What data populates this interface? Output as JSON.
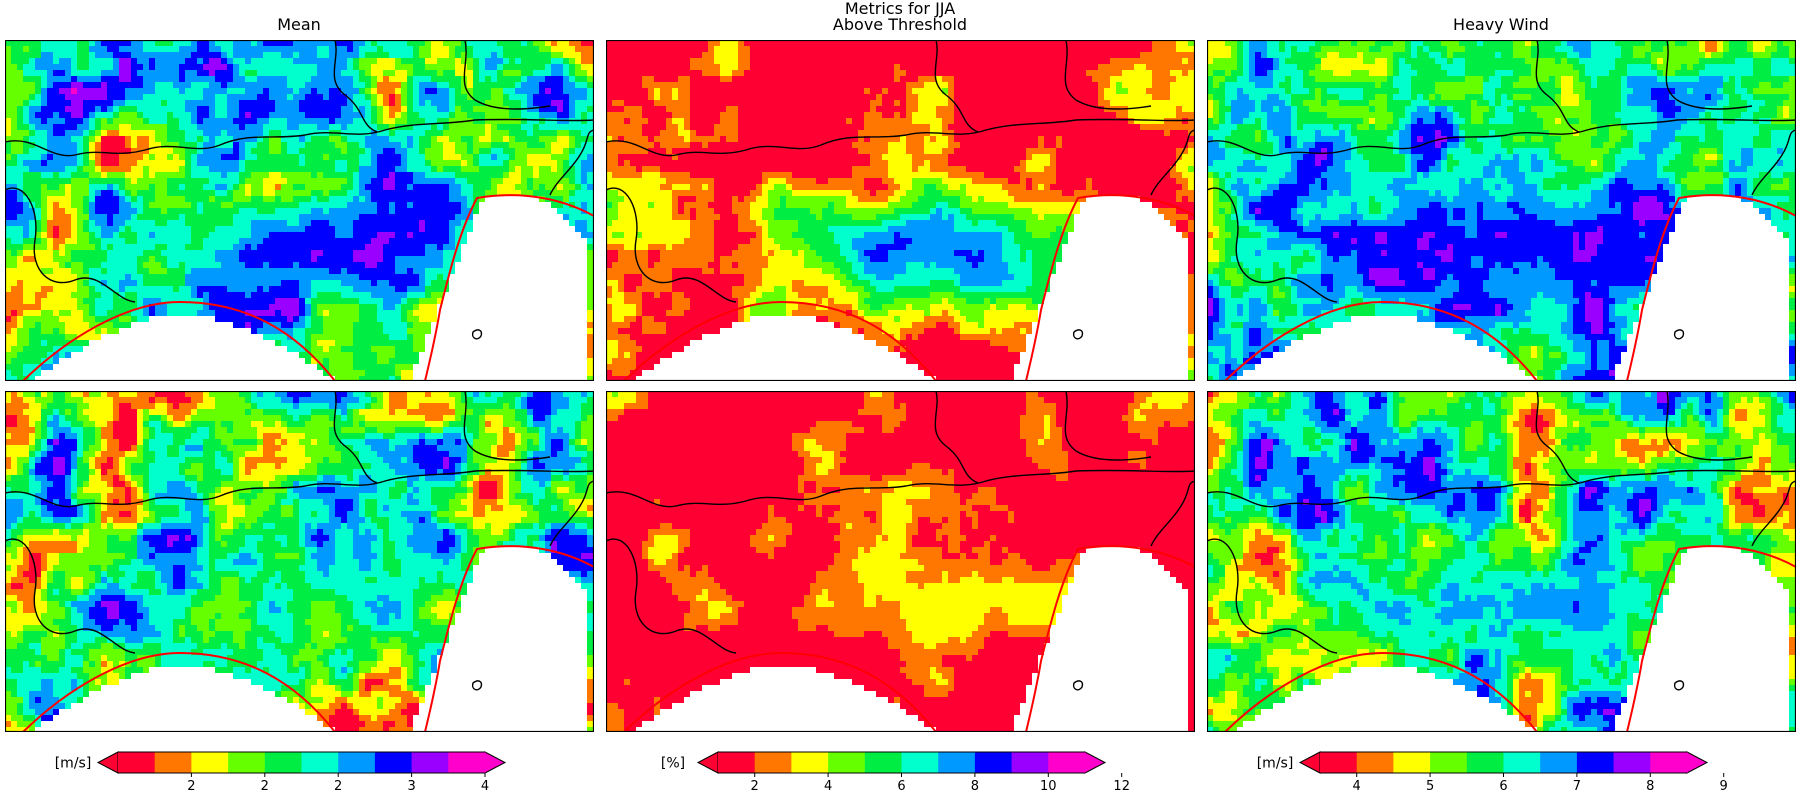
{
  "figure": {
    "suptitle": "Metrics for JJA"
  },
  "columns": [
    {
      "title": "Mean"
    },
    {
      "title": "Above Threshold"
    },
    {
      "title": "Heavy Wind"
    }
  ],
  "chart_data": [
    {
      "type": "heatmap",
      "title": "Mean",
      "row": 1,
      "description_scale": "row 1 filled map (top) of mean metric",
      "colorbar_ref": 0
    },
    {
      "type": "heatmap",
      "title": "Above Threshold",
      "row": 1,
      "colorbar_ref": 1
    },
    {
      "type": "heatmap",
      "title": "Heavy Wind",
      "row": 1,
      "colorbar_ref": 2
    },
    {
      "type": "heatmap",
      "title": "",
      "row": 2,
      "colorbar_ref": 0
    },
    {
      "type": "heatmap",
      "title": "",
      "row": 2,
      "colorbar_ref": 1
    },
    {
      "type": "heatmap",
      "title": "",
      "row": 2,
      "colorbar_ref": 2
    }
  ],
  "colorbars": [
    {
      "unit": "[m/s]",
      "ticks": [
        "2",
        "2",
        "2",
        "3",
        "4"
      ],
      "tick_boundary_index": [
        2,
        4,
        6,
        8,
        10
      ]
    },
    {
      "unit": "[%]",
      "ticks": [
        "2",
        "4",
        "6",
        "8",
        "10",
        "12"
      ],
      "tick_boundary_index": [
        1,
        3,
        5,
        7,
        9,
        11
      ]
    },
    {
      "unit": "[m/s]",
      "ticks": [
        "4",
        "5",
        "6",
        "7",
        "8",
        "9"
      ],
      "tick_boundary_index": [
        1,
        3,
        5,
        7,
        9,
        11
      ]
    }
  ],
  "colormap": [
    "#ff0033",
    "#ff7700",
    "#ffff00",
    "#66ff00",
    "#00ee44",
    "#00ffcc",
    "#0099ff",
    "#0000ff",
    "#9900ff",
    "#ff00cc"
  ],
  "colors": {
    "sea": "#ffffff",
    "coast": "#ff0000",
    "border": "#000000"
  }
}
